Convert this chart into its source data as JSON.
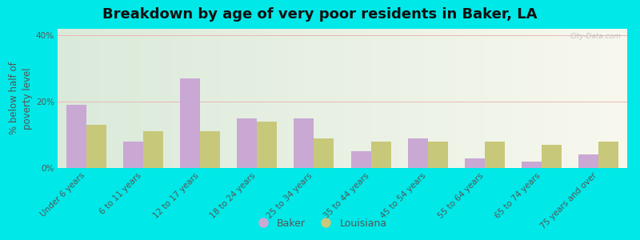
{
  "title": "Breakdown by age of very poor residents in Baker, LA",
  "ylabel": "% below half of\npoverty level",
  "categories": [
    "Under 6 years",
    "6 to 11 years",
    "12 to 17 years",
    "18 to 24 years",
    "25 to 34 years",
    "35 to 44 years",
    "45 to 54 years",
    "55 to 64 years",
    "65 to 74 years",
    "75 years and over"
  ],
  "baker_values": [
    19,
    8,
    27,
    15,
    15,
    5,
    9,
    3,
    2,
    4
  ],
  "louisiana_values": [
    13,
    11,
    11,
    14,
    9,
    8,
    8,
    8,
    7,
    8
  ],
  "baker_color": "#c9a8d4",
  "louisiana_color": "#c8c87a",
  "background_outer": "#00e8e8",
  "bg_top_color": "#daeada",
  "bg_bottom_color": "#f8f8ee",
  "ylim": [
    0,
    42
  ],
  "yticks": [
    0,
    20,
    40
  ],
  "ytick_labels": [
    "0%",
    "20%",
    "40%"
  ],
  "bar_width": 0.35,
  "legend_labels": [
    "Baker",
    "Louisiana"
  ],
  "title_fontsize": 13,
  "axis_label_fontsize": 8.5,
  "tick_fontsize": 7.5,
  "watermark": "City-Data.com"
}
